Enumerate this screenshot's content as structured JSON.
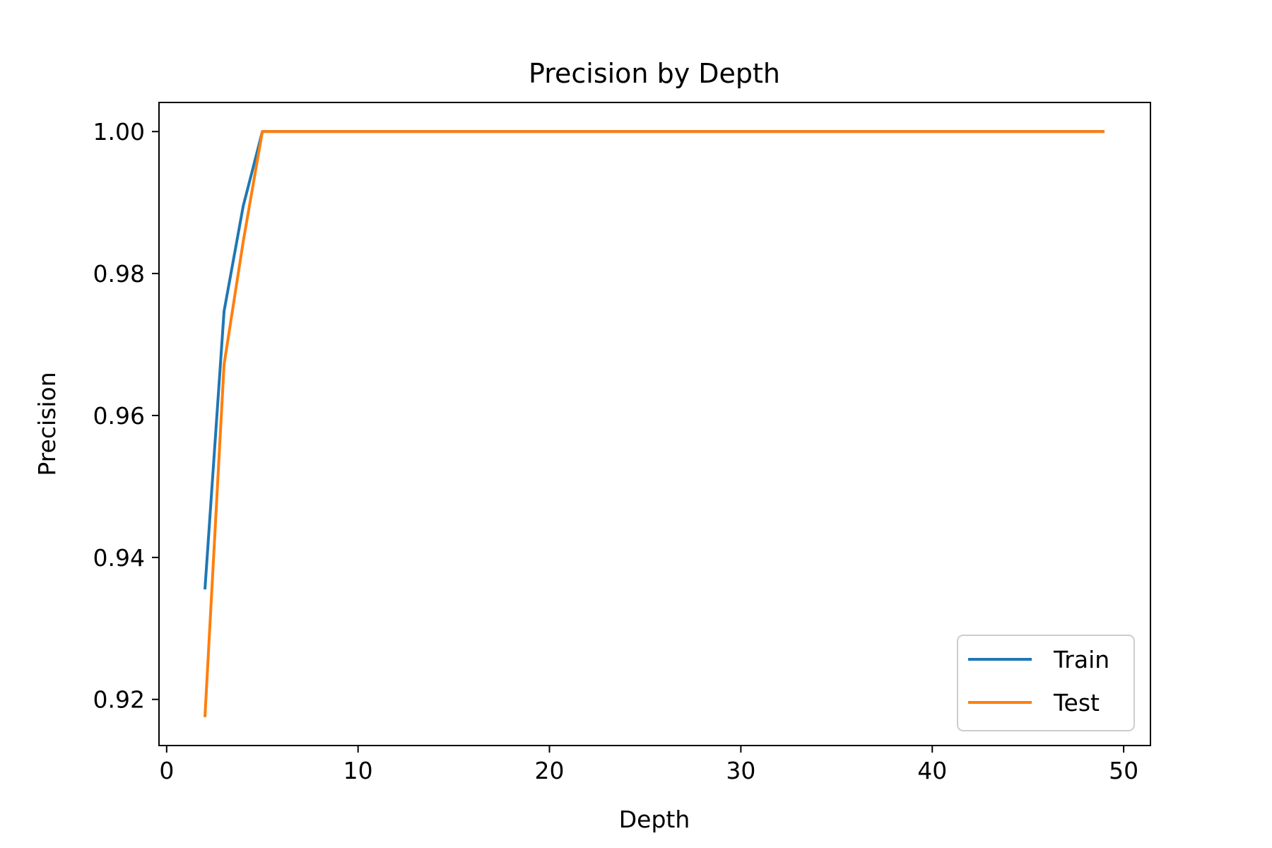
{
  "chart_data": {
    "type": "line",
    "title": "Precision by Depth",
    "xlabel": "Depth",
    "ylabel": "Precision",
    "xlim": [
      -0.4,
      51.4
    ],
    "ylim": [
      0.9135,
      1.0041
    ],
    "xticks": [
      0,
      10,
      20,
      30,
      40,
      50
    ],
    "xtick_labels": [
      "0",
      "10",
      "20",
      "30",
      "40",
      "50"
    ],
    "yticks": [
      0.92,
      0.94,
      0.96,
      0.98,
      1.0
    ],
    "ytick_labels": [
      "0.92",
      "0.94",
      "0.96",
      "0.98",
      "1.00"
    ],
    "grid": false,
    "legend_position": "lower-right",
    "x": [
      2,
      3,
      4,
      5,
      6,
      7,
      8,
      9,
      10,
      11,
      12,
      13,
      14,
      15,
      16,
      17,
      18,
      19,
      20,
      21,
      22,
      23,
      24,
      25,
      26,
      27,
      28,
      29,
      30,
      31,
      32,
      33,
      34,
      35,
      36,
      37,
      38,
      39,
      40,
      41,
      42,
      43,
      44,
      45,
      46,
      47,
      48,
      49
    ],
    "series": [
      {
        "name": "Train",
        "color": "#1f77b4",
        "values": [
          0.9355,
          0.9747,
          0.9895,
          1.0,
          1.0,
          1.0,
          1.0,
          1.0,
          1.0,
          1.0,
          1.0,
          1.0,
          1.0,
          1.0,
          1.0,
          1.0,
          1.0,
          1.0,
          1.0,
          1.0,
          1.0,
          1.0,
          1.0,
          1.0,
          1.0,
          1.0,
          1.0,
          1.0,
          1.0,
          1.0,
          1.0,
          1.0,
          1.0,
          1.0,
          1.0,
          1.0,
          1.0,
          1.0,
          1.0,
          1.0,
          1.0,
          1.0,
          1.0,
          1.0,
          1.0,
          1.0,
          1.0,
          1.0
        ]
      },
      {
        "name": "Test",
        "color": "#ff7f0e",
        "values": [
          0.9175,
          0.9672,
          0.9845,
          1.0,
          1.0,
          1.0,
          1.0,
          1.0,
          1.0,
          1.0,
          1.0,
          1.0,
          1.0,
          1.0,
          1.0,
          1.0,
          1.0,
          1.0,
          1.0,
          1.0,
          1.0,
          1.0,
          1.0,
          1.0,
          1.0,
          1.0,
          1.0,
          1.0,
          1.0,
          1.0,
          1.0,
          1.0,
          1.0,
          1.0,
          1.0,
          1.0,
          1.0,
          1.0,
          1.0,
          1.0,
          1.0,
          1.0,
          1.0,
          1.0,
          1.0,
          1.0,
          1.0,
          1.0
        ]
      }
    ]
  }
}
